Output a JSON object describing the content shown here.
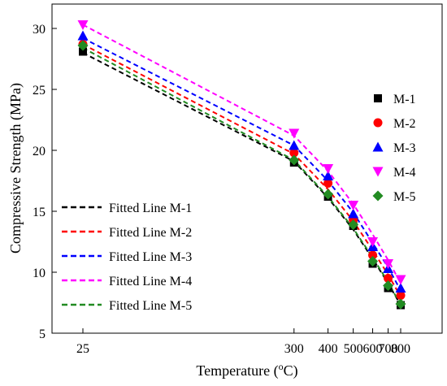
{
  "chart_data": {
    "type": "scatter",
    "title": "",
    "xlabel": "Temperature (°C)",
    "ylabel": "Compressive Strength (MPa)",
    "x_scale": "reciprocal-kelvin",
    "x_ticks": [
      25,
      300,
      400,
      500,
      600,
      700,
      800
    ],
    "ylim": [
      5,
      32
    ],
    "y_ticks": [
      5,
      10,
      15,
      20,
      25,
      30
    ],
    "grid": false,
    "legend_points_placement": "right",
    "legend_lines_placement": "bottom-left",
    "x": [
      25,
      300,
      400,
      500,
      600,
      700,
      800
    ],
    "series": [
      {
        "name": "M-1",
        "marker": "square",
        "color": "#000000",
        "values": [
          28.1,
          19.0,
          16.2,
          13.8,
          10.7,
          8.7,
          7.3
        ]
      },
      {
        "name": "M-2",
        "marker": "circle",
        "color": "#ff0000",
        "values": [
          28.7,
          19.8,
          17.3,
          14.3,
          11.4,
          9.5,
          8.1
        ]
      },
      {
        "name": "M-3",
        "marker": "triangle-up",
        "color": "#0000ff",
        "values": [
          29.4,
          20.4,
          17.9,
          14.8,
          12.1,
          10.3,
          8.7
        ]
      },
      {
        "name": "M-4",
        "marker": "triangle-down",
        "color": "#ff00ff",
        "values": [
          30.3,
          21.4,
          18.5,
          15.5,
          12.5,
          10.7,
          9.4
        ]
      },
      {
        "name": "M-5",
        "marker": "diamond",
        "color": "#228b22",
        "values": [
          28.6,
          19.2,
          16.4,
          13.9,
          10.9,
          8.9,
          7.4
        ]
      }
    ],
    "fitted_lines": [
      {
        "name": "Fitted Line M-1",
        "color": "#000000",
        "values": [
          28.0,
          19.1,
          16.1,
          13.5,
          11.1,
          9.1,
          7.3
        ]
      },
      {
        "name": "Fitted Line M-2",
        "color": "#ff0000",
        "values": [
          28.7,
          19.7,
          16.8,
          14.2,
          11.8,
          9.8,
          8.0
        ]
      },
      {
        "name": "Fitted Line M-3",
        "color": "#0000ff",
        "values": [
          29.2,
          20.4,
          17.5,
          14.9,
          12.4,
          10.4,
          8.5
        ]
      },
      {
        "name": "Fitted Line M-4",
        "color": "#ff00ff",
        "values": [
          30.3,
          21.2,
          18.3,
          15.6,
          13.1,
          11.0,
          9.1
        ]
      },
      {
        "name": "Fitted Line M-5",
        "color": "#228b22",
        "values": [
          28.4,
          19.2,
          16.2,
          13.6,
          11.2,
          9.2,
          7.3
        ]
      }
    ]
  }
}
